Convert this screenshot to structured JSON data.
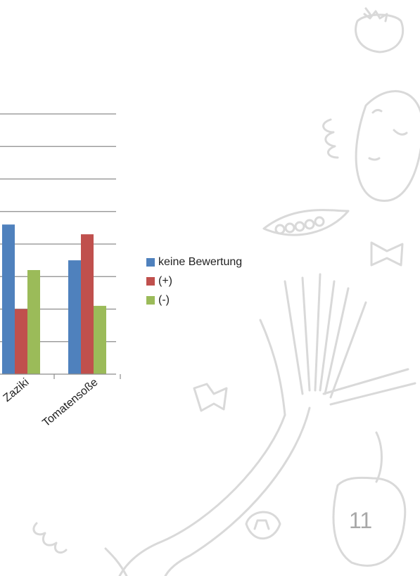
{
  "colors": {
    "keine_bewertung": "#4f81bd",
    "plus": "#c0504d",
    "minus": "#9bbb59",
    "grid": "#8c8c8c",
    "sketch": "#d9d9d9"
  },
  "page_number": "11",
  "chart_data": {
    "type": "bar",
    "title": "",
    "xlabel": "",
    "ylabel": "",
    "categories": [
      "Zaziki",
      "Tomatensoße"
    ],
    "series": [
      {
        "name": "keine Bewertung",
        "values": [
          46,
          35
        ]
      },
      {
        "name": "(+)",
        "values": [
          20,
          43
        ]
      },
      {
        "name": "(-)",
        "values": [
          32,
          21
        ]
      }
    ],
    "ylim": [
      0,
      80
    ],
    "grid": true,
    "legend": "right"
  }
}
